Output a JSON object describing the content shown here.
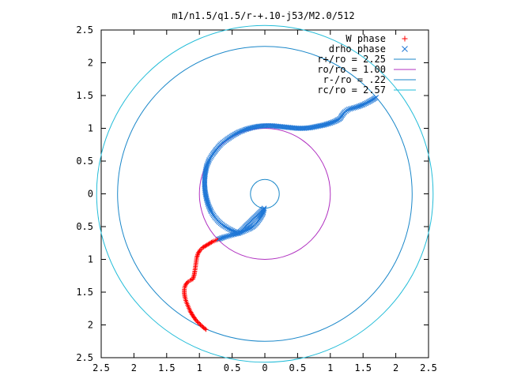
{
  "chart_data": {
    "type": "scatter",
    "title": "m1/n1.5/q1.5/r-+.10-j53/M2.0/512",
    "xlabel": "",
    "ylabel": "",
    "xlim": [
      -2.5,
      2.5
    ],
    "ylim": [
      -2.5,
      2.5
    ],
    "grid": false,
    "legend_position": "top-right",
    "x_ticks": [
      "2.5",
      "2",
      "1.5",
      "1",
      "0.5",
      "0",
      "0.5",
      "1",
      "1.5",
      "2",
      "2.5"
    ],
    "x_tick_values": [
      -2.5,
      -2,
      -1.5,
      -1,
      -0.5,
      0,
      0.5,
      1,
      1.5,
      2,
      2.5
    ],
    "y_ticks": [
      "2.5",
      "2",
      "1.5",
      "1",
      "0.5",
      "0",
      "0.5",
      "1",
      "1.5",
      "2",
      "2.5"
    ],
    "y_tick_values": [
      2.5,
      2,
      1.5,
      1,
      0.5,
      0,
      -0.5,
      -1,
      -1.5,
      -2,
      -2.5
    ],
    "series": [
      {
        "name": "W phase",
        "marker": "+",
        "color": "#ff0000",
        "x": [
          -0.9,
          -0.95,
          -1.0,
          -1.05,
          -1.1,
          -1.14,
          -1.17,
          -1.2,
          -1.22,
          -1.23,
          -1.23,
          -1.22,
          -1.2,
          -1.17,
          -1.14,
          -1.1,
          -1.08,
          -1.07,
          -1.06,
          -1.05,
          -1.04,
          -1.02,
          -0.99,
          -0.95,
          -0.9,
          -0.85,
          -0.8,
          -0.75,
          -0.7
        ],
        "y": [
          -2.07,
          -2.03,
          -1.98,
          -1.93,
          -1.86,
          -1.79,
          -1.72,
          -1.65,
          -1.58,
          -1.52,
          -1.46,
          -1.41,
          -1.37,
          -1.34,
          -1.32,
          -1.3,
          -1.24,
          -1.18,
          -1.11,
          -1.04,
          -0.97,
          -0.91,
          -0.86,
          -0.82,
          -0.79,
          -0.76,
          -0.73,
          -0.71,
          -0.69
        ]
      },
      {
        "name": "drho phase",
        "marker": "x",
        "color": "#1f77d6",
        "x": [
          -0.7,
          -0.62,
          -0.55,
          -0.48,
          -0.4,
          -0.32,
          -0.25,
          -0.18,
          -0.12,
          -0.07,
          -0.03,
          -0.01,
          -0.4,
          -0.48,
          -0.56,
          -0.64,
          -0.71,
          -0.77,
          -0.82,
          -0.86,
          -0.89,
          -0.91,
          -0.92,
          -0.92,
          -0.91,
          -0.89,
          -0.85,
          -0.8,
          -0.74,
          -0.67,
          -0.58,
          -0.49,
          -0.4,
          -0.3,
          -0.2,
          -0.1,
          0.0,
          0.1,
          0.2,
          0.3,
          0.4,
          0.5,
          0.6,
          0.7,
          0.8,
          0.9,
          1.0,
          1.08,
          1.15,
          1.18,
          1.22,
          1.28,
          1.35,
          1.42,
          1.5,
          1.58,
          1.65,
          1.7
        ],
        "y": [
          -0.69,
          -0.66,
          -0.64,
          -0.62,
          -0.6,
          -0.57,
          -0.54,
          -0.5,
          -0.44,
          -0.37,
          -0.3,
          -0.22,
          -0.6,
          -0.57,
          -0.53,
          -0.48,
          -0.42,
          -0.35,
          -0.27,
          -0.18,
          -0.08,
          0.02,
          0.12,
          0.22,
          0.32,
          0.42,
          0.52,
          0.6,
          0.68,
          0.76,
          0.83,
          0.89,
          0.94,
          0.98,
          1.01,
          1.03,
          1.04,
          1.04,
          1.03,
          1.02,
          1.01,
          1.0,
          1.0,
          1.01,
          1.03,
          1.05,
          1.08,
          1.11,
          1.15,
          1.2,
          1.25,
          1.29,
          1.31,
          1.33,
          1.36,
          1.4,
          1.44,
          1.47
        ]
      }
    ],
    "circles": [
      {
        "name": "r+/ro = 2.25",
        "radius": 2.25,
        "color": "#1a87c9"
      },
      {
        "name": "ro/ro = 1.00",
        "radius": 1.0,
        "color": "#b030c0"
      },
      {
        "name": "r-/ro = .22",
        "radius": 0.22,
        "color": "#1a87c9"
      },
      {
        "name": "rc/ro = 2.57",
        "radius": 2.57,
        "color": "#22bcd8"
      }
    ]
  }
}
